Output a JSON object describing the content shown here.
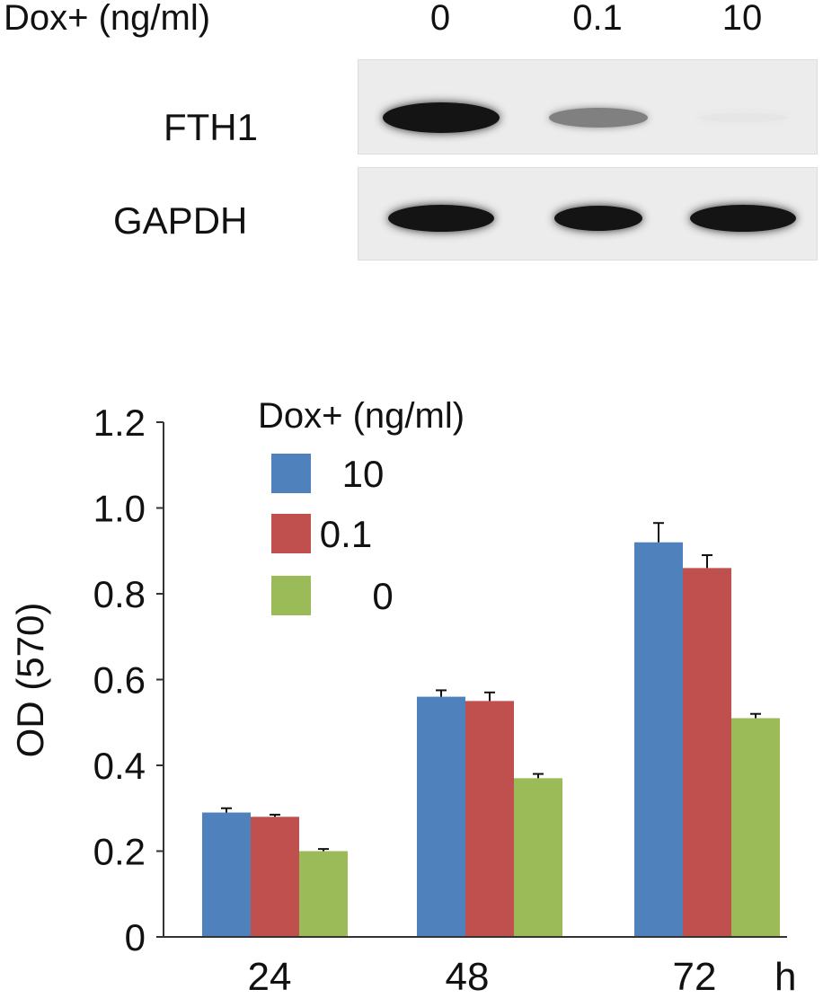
{
  "blot": {
    "treatment_label": "Dox+ (ng/ml)",
    "lanes": [
      "0",
      "0.1",
      "10"
    ],
    "rows": [
      {
        "label": "FTH1",
        "intensity": [
          1.0,
          0.5,
          0.03
        ]
      },
      {
        "label": "GAPDH",
        "intensity": [
          1.0,
          1.0,
          1.0
        ]
      }
    ]
  },
  "chart_data": {
    "type": "bar",
    "ylabel": "OD (570)",
    "xunit": "h",
    "categories": [
      "24",
      "48",
      "72"
    ],
    "ylim": [
      0,
      1.2
    ],
    "yticks": [
      "0",
      "0.2",
      "0.4",
      "0.6",
      "0.8",
      "1.0",
      "1.2"
    ],
    "legend_title": "Dox+ (ng/ml)",
    "legend_position": "top-left",
    "series": [
      {
        "name": "10",
        "color": "#4f81bd",
        "values": [
          0.29,
          0.56,
          0.92
        ],
        "errors": [
          0.01,
          0.015,
          0.045
        ]
      },
      {
        "name": "0.1",
        "color": "#c0504d",
        "values": [
          0.28,
          0.55,
          0.86
        ],
        "errors": [
          0.005,
          0.02,
          0.03
        ]
      },
      {
        "name": "0",
        "color": "#9bbb59",
        "values": [
          0.2,
          0.37,
          0.51
        ],
        "errors": [
          0.005,
          0.01,
          0.01
        ]
      }
    ]
  }
}
